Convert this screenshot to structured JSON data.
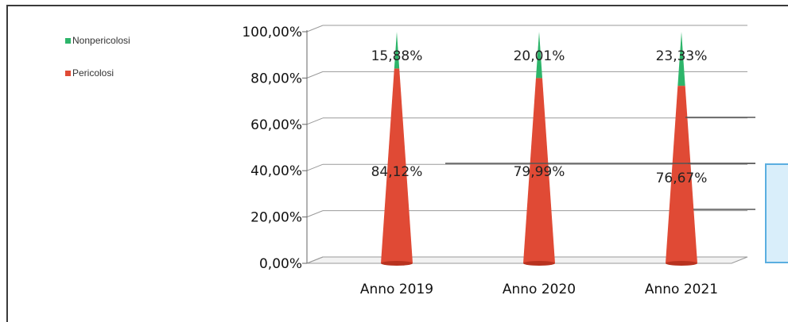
{
  "chart_data": {
    "type": "bar",
    "subtype": "stacked-100-cone-3d",
    "categories": [
      "Anno 2019",
      "Anno 2020",
      "Anno 2021"
    ],
    "series": [
      {
        "name": "Pericolosi",
        "values": [
          84.12,
          79.99,
          76.67
        ],
        "labels": [
          "84,12%",
          "79,99%",
          "76,67%"
        ],
        "color": "#e04a35"
      },
      {
        "name": "Non pericolosi",
        "values": [
          15.88,
          20.01,
          23.33
        ],
        "labels": [
          "15,88%",
          "20,01%",
          "23,33%"
        ],
        "color": "#2db56a"
      }
    ],
    "ylim": [
      0,
      100
    ],
    "yticks": [
      "0,00%",
      "20,00%",
      "40,00%",
      "60,00%",
      "80,00%",
      "100,00%"
    ],
    "grid": true,
    "legend_position": "top-left",
    "legend": [
      {
        "label": "Nonpericolosi",
        "color": "#2db56a"
      },
      {
        "label": "Pericolosi",
        "color": "#e04a35"
      }
    ]
  }
}
